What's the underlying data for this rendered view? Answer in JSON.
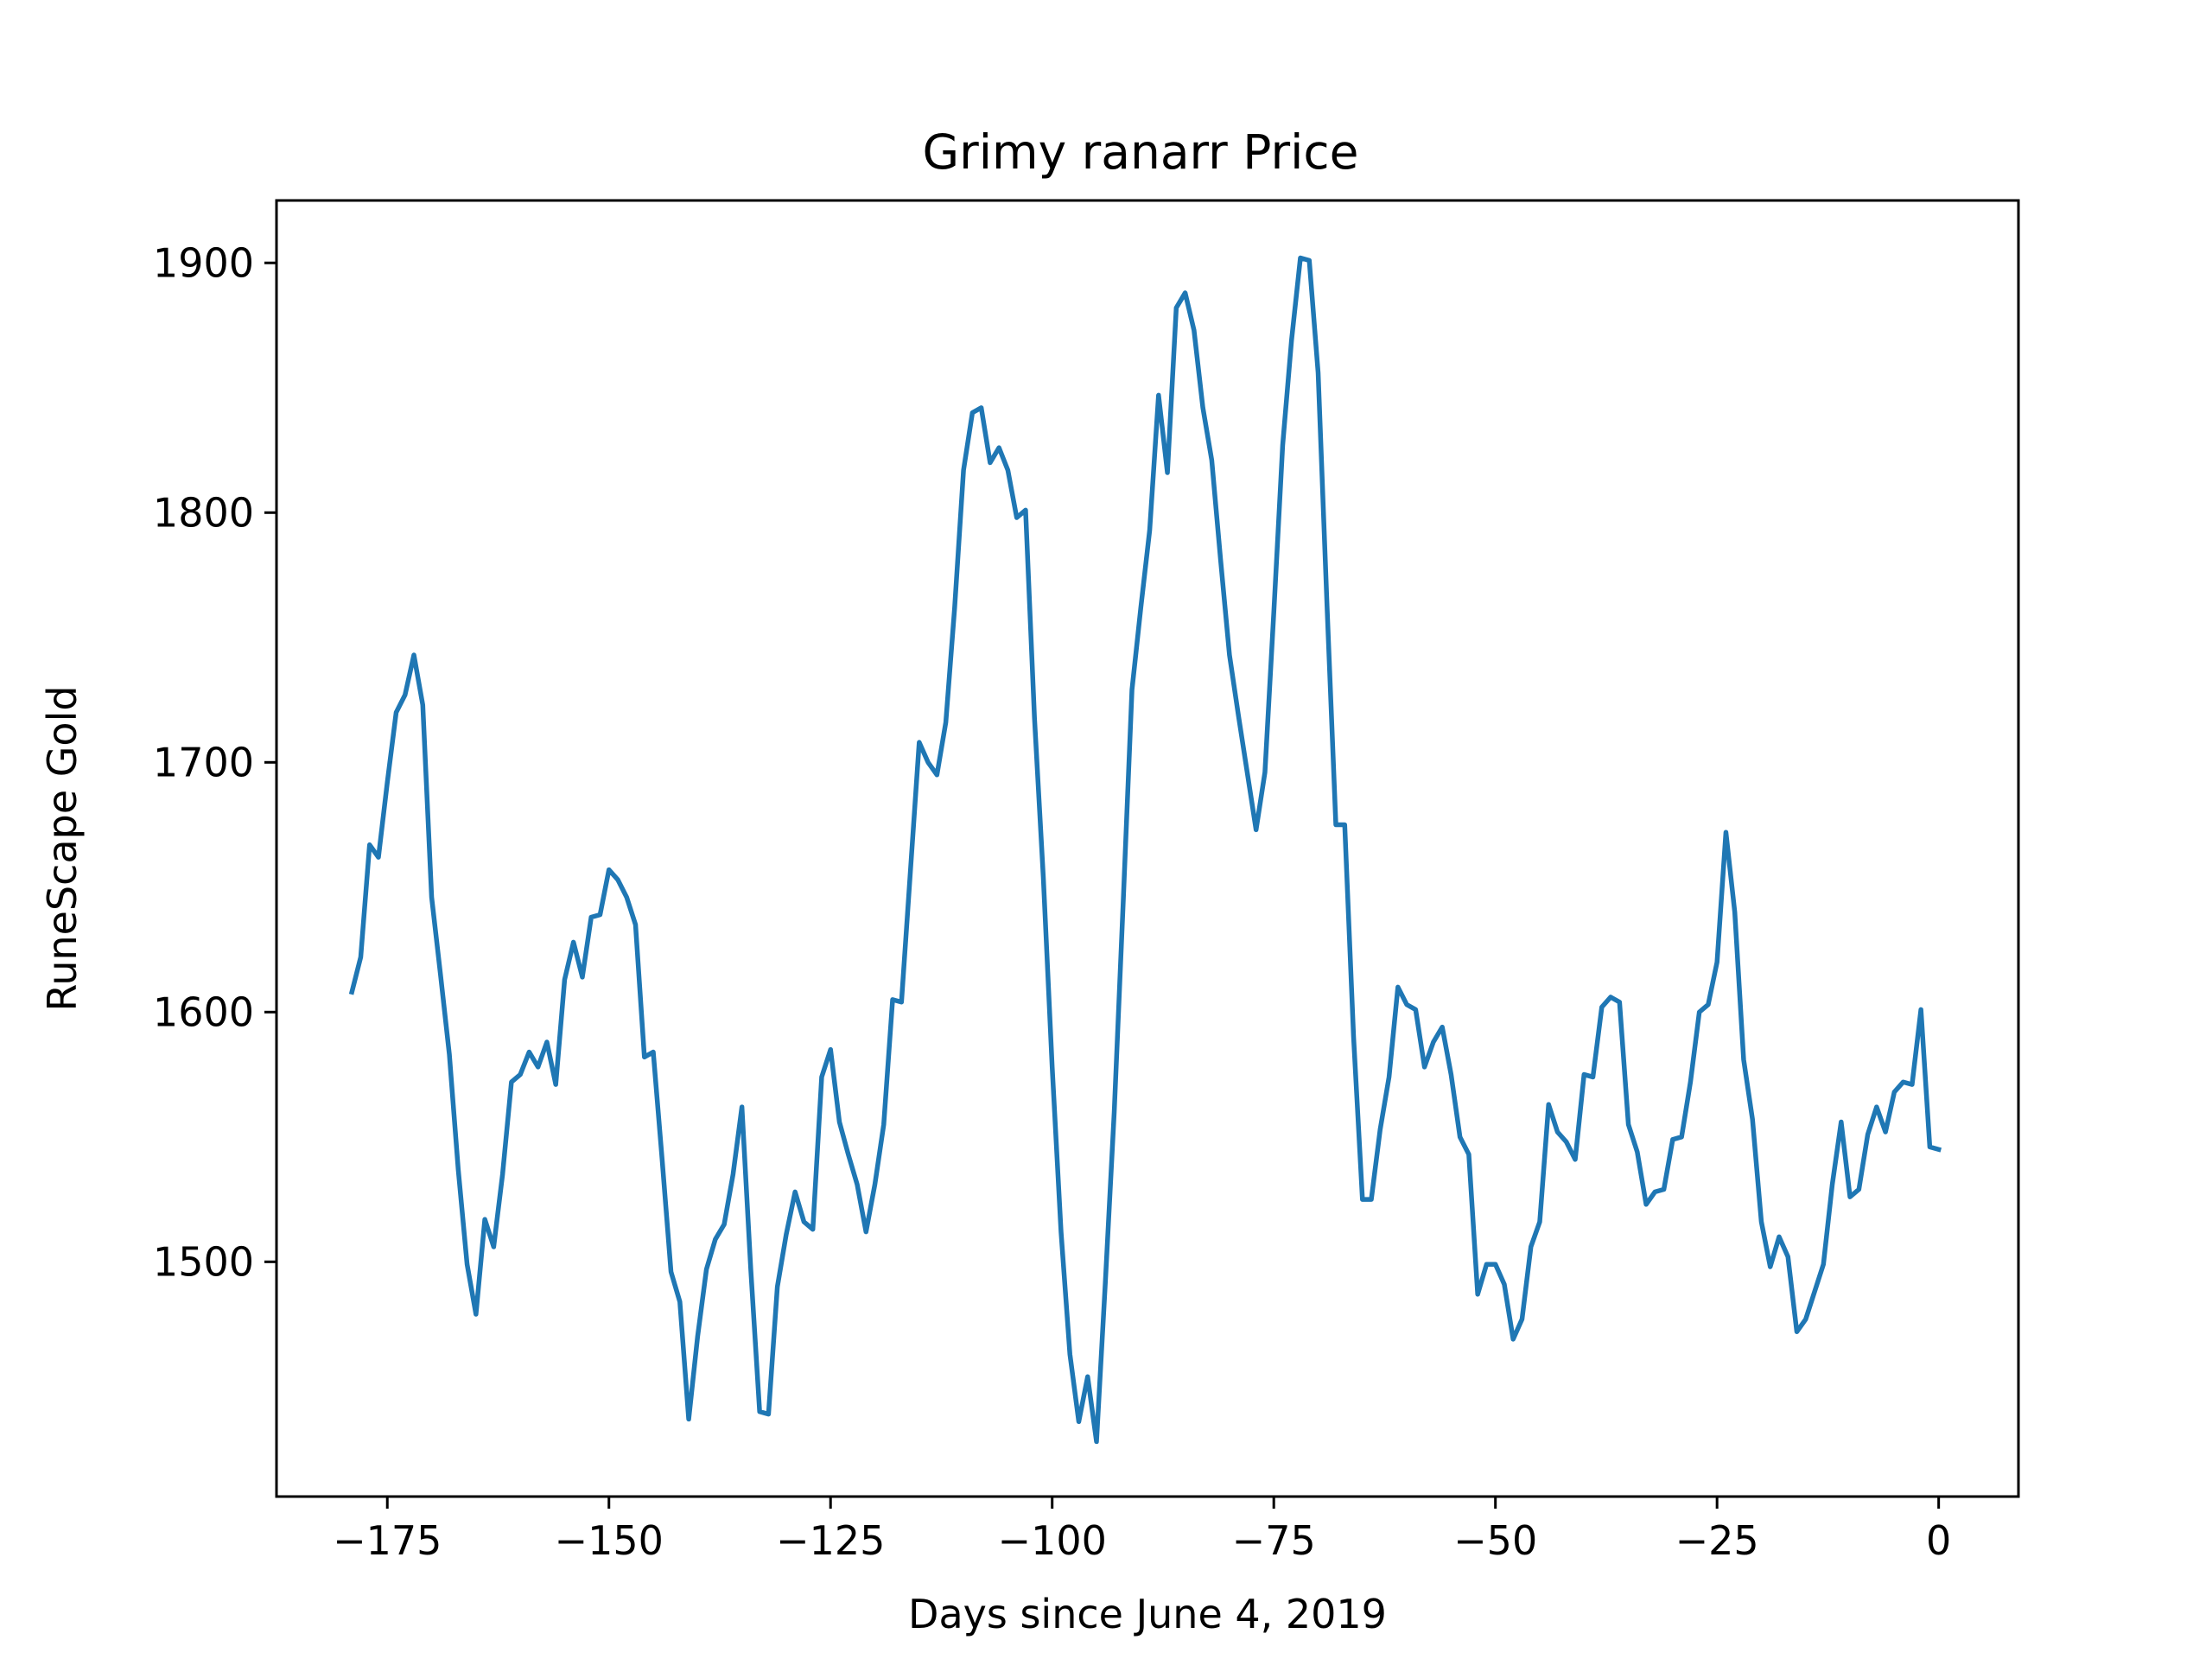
{
  "chart_data": {
    "type": "line",
    "title": "Grimy ranarr Price",
    "xlabel": "Days since June 4, 2019",
    "ylabel": "RuneScape Gold",
    "xlim": [
      -187.5,
      9
    ],
    "ylim": [
      1406,
      1925
    ],
    "xticks": [
      -175,
      -150,
      -125,
      -100,
      -75,
      -50,
      -25,
      0
    ],
    "xtick_labels": [
      "−175",
      "−150",
      "−125",
      "−100",
      "−75",
      "−50",
      "−25",
      "0"
    ],
    "yticks": [
      1500,
      1600,
      1700,
      1800,
      1900
    ],
    "ytick_labels": [
      "1500",
      "1600",
      "1700",
      "1800",
      "1900"
    ],
    "grid": false,
    "legend": "none",
    "colors": {
      "series": "#1f77b4",
      "axes": "#000000",
      "background": "#ffffff"
    },
    "series": [
      {
        "color": "#1f77b4",
        "x": [
          -179,
          -178,
          -177,
          -176,
          -175,
          -174,
          -173,
          -172,
          -171,
          -170,
          -169,
          -168,
          -167,
          -166,
          -165,
          -164,
          -163,
          -162,
          -161,
          -160,
          -159,
          -158,
          -157,
          -156,
          -155,
          -154,
          -153,
          -152,
          -151,
          -150,
          -149,
          -148,
          -147,
          -146,
          -145,
          -144,
          -143,
          -142,
          -141,
          -140,
          -139,
          -138,
          -137,
          -136,
          -135,
          -134,
          -133,
          -132,
          -131,
          -130,
          -129,
          -128,
          -127,
          -126,
          -125,
          -124,
          -123,
          -122,
          -121,
          -120,
          -119,
          -118,
          -117,
          -116,
          -115,
          -114,
          -113,
          -112,
          -111,
          -110,
          -109,
          -108,
          -107,
          -106,
          -105,
          -104,
          -103,
          -102,
          -101,
          -100,
          -99,
          -98,
          -97,
          -96,
          -95,
          -94,
          -93,
          -92,
          -91,
          -90,
          -89,
          -88,
          -87,
          -86,
          -85,
          -84,
          -83,
          -82,
          -81,
          -80,
          -79,
          -78,
          -77,
          -76,
          -75,
          -74,
          -73,
          -72,
          -71,
          -70,
          -69,
          -68,
          -67,
          -66,
          -65,
          -64,
          -63,
          -62,
          -61,
          -60,
          -59,
          -58,
          -57,
          -56,
          -55,
          -54,
          -53,
          -52,
          -51,
          -50,
          -49,
          -48,
          -47,
          -46,
          -45,
          -44,
          -43,
          -42,
          -41,
          -40,
          -39,
          -38,
          -37,
          -36,
          -35,
          -34,
          -33,
          -32,
          -31,
          -30,
          -29,
          -28,
          -27,
          -26,
          -25,
          -24,
          -23,
          -22,
          -21,
          -20,
          -19,
          -18,
          -17,
          -16,
          -15,
          -14,
          -13,
          -12,
          -11,
          -10,
          -9,
          -8,
          -7,
          -6,
          -5,
          -4,
          -3,
          -2,
          -1,
          0
        ],
        "y": [
          1608,
          1622,
          1667,
          1662,
          1692,
          1720,
          1727,
          1743,
          1723,
          1646,
          1615,
          1583,
          1537,
          1499,
          1479,
          1517,
          1506,
          1535,
          1572,
          1575,
          1584,
          1578,
          1588,
          1571,
          1613,
          1628,
          1614,
          1638,
          1639,
          1657,
          1653,
          1646,
          1635,
          1582,
          1584,
          1541,
          1496,
          1484,
          1437,
          1470,
          1497,
          1509,
          1515,
          1535,
          1562,
          1497,
          1440,
          1439,
          1490,
          1511,
          1528,
          1516,
          1513,
          1574,
          1585,
          1556,
          1543,
          1531,
          1512,
          1531,
          1555,
          1605,
          1604,
          1656,
          1708,
          1700,
          1695,
          1716,
          1762,
          1817,
          1840,
          1842,
          1820,
          1826,
          1817,
          1798,
          1801,
          1718,
          1654,
          1578,
          1512,
          1463,
          1436,
          1454,
          1428,
          1492,
          1560,
          1643,
          1729,
          1762,
          1793,
          1847,
          1816,
          1882,
          1888,
          1873,
          1842,
          1821,
          1781,
          1743,
          1719,
          1696,
          1673,
          1696,
          1760,
          1827,
          1869,
          1902,
          1901,
          1856,
          1763,
          1675,
          1675,
          1590,
          1525,
          1525,
          1553,
          1574,
          1610,
          1603,
          1601,
          1578,
          1588,
          1594,
          1575,
          1550,
          1543,
          1487,
          1499,
          1499,
          1491,
          1469,
          1477,
          1506,
          1516,
          1563,
          1552,
          1548,
          1541,
          1575,
          1574,
          1602,
          1606,
          1604,
          1555,
          1544,
          1523,
          1528,
          1529,
          1549,
          1550,
          1572,
          1600,
          1603,
          1620,
          1672,
          1640,
          1581,
          1557,
          1516,
          1498,
          1510,
          1502,
          1472,
          1477,
          1488,
          1499,
          1531,
          1556,
          1526,
          1529,
          1551,
          1562,
          1552,
          1568,
          1572,
          1571,
          1601,
          1546,
          1545
        ]
      }
    ]
  }
}
